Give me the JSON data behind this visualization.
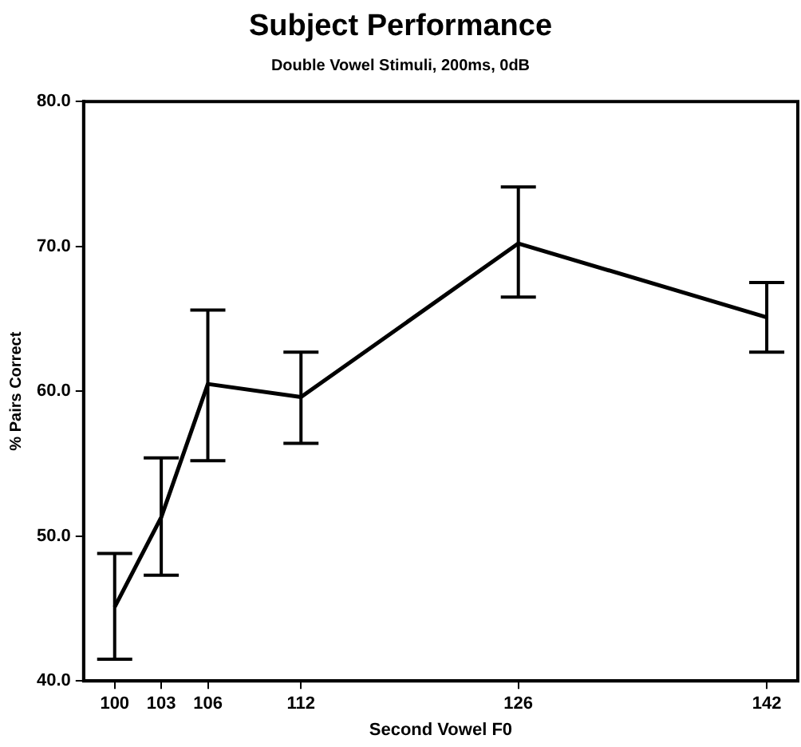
{
  "chart_data": {
    "type": "line",
    "title": "Subject Performance",
    "subtitle": "Double Vowel Stimuli, 200ms, 0dB",
    "xlabel": "Second Vowel F0",
    "ylabel": "% Pairs Correct",
    "x": [
      100,
      103,
      106,
      112,
      126,
      142
    ],
    "series": [
      {
        "color": "#000000",
        "values": [
          45.1,
          51.3,
          60.5,
          59.6,
          70.2,
          65.1
        ],
        "errors": [
          [
            41.5,
            48.8
          ],
          [
            47.3,
            55.4
          ],
          [
            55.2,
            65.6
          ],
          [
            56.4,
            62.7
          ],
          [
            66.5,
            74.1
          ],
          [
            62.7,
            67.5
          ]
        ]
      }
    ],
    "xlim": [
      98,
      144
    ],
    "xticks": [
      100,
      103,
      106,
      112,
      126,
      142
    ],
    "ylim": [
      40,
      80
    ],
    "yticks": [
      {
        "value": 40,
        "label": "40.0"
      },
      {
        "value": 50,
        "label": "50.0"
      },
      {
        "value": 60,
        "label": "60.0"
      },
      {
        "value": 70,
        "label": "70.0"
      },
      {
        "value": 80,
        "label": "80.0"
      }
    ],
    "grid": false,
    "legend": false,
    "marker": "none",
    "line_style": "solid"
  }
}
